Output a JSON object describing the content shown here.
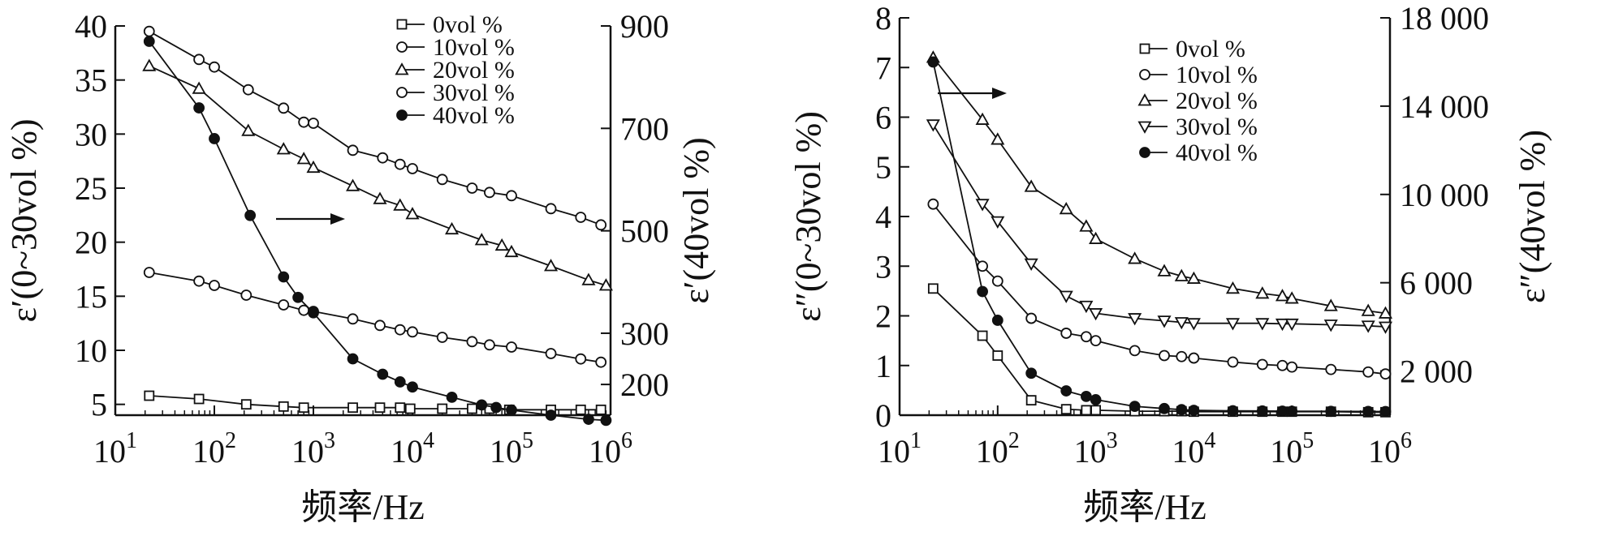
{
  "chart_data": [
    {
      "type": "line",
      "xscale": "log",
      "xlim": [
        10,
        1000000
      ],
      "x_ticks": [
        1,
        2,
        3,
        4,
        5,
        6
      ],
      "x_tick_base": "10",
      "xlabel": "频率/Hz",
      "ylabel": "ε′(0~30vol %)",
      "ylim": [
        4,
        40
      ],
      "y_ticks": [
        "5",
        "10",
        "15",
        "20",
        "25",
        "30",
        "35",
        "40"
      ],
      "y2label": "ε′(40vol %)",
      "y2lim": [
        140,
        900
      ],
      "y2_ticks": [
        "200",
        "300",
        "500",
        "700",
        "900"
      ],
      "legend_position": "top-right",
      "arrow": "right-axis",
      "series": [
        {
          "name": "0vol %",
          "marker": "square",
          "axis": "left",
          "x": [
            22,
            70,
            210,
            500,
            800,
            2500,
            4700,
            7500,
            9500,
            20000,
            40000,
            60000,
            95000,
            250000,
            500000,
            800000
          ],
          "y": [
            5.8,
            5.5,
            5.0,
            4.8,
            4.7,
            4.7,
            4.7,
            4.7,
            4.6,
            4.6,
            4.6,
            4.6,
            4.5,
            4.5,
            4.5,
            4.5
          ]
        },
        {
          "name": "10vol %",
          "marker": "circle",
          "axis": "left",
          "x": [
            22,
            70,
            100,
            210,
            500,
            800,
            1000,
            2500,
            4700,
            7500,
            10000,
            20000,
            40000,
            60000,
            100000,
            250000,
            500000,
            800000
          ],
          "y": [
            17.2,
            16.4,
            16.0,
            15.1,
            14.2,
            13.7,
            13.6,
            12.9,
            12.3,
            11.9,
            11.7,
            11.2,
            10.8,
            10.5,
            10.3,
            9.7,
            9.2,
            8.9
          ]
        },
        {
          "name": "20vol %",
          "marker": "triangle",
          "axis": "left",
          "x": [
            22,
            70,
            220,
            500,
            800,
            1000,
            2500,
            4700,
            7500,
            10000,
            25000,
            50000,
            80000,
            100000,
            250000,
            600000,
            900000
          ],
          "y": [
            36.3,
            34.2,
            30.3,
            28.6,
            27.7,
            26.9,
            25.2,
            24.0,
            23.4,
            22.6,
            21.2,
            20.2,
            19.7,
            19.1,
            17.8,
            16.5,
            16.0
          ]
        },
        {
          "name": "30vol %",
          "marker": "circle",
          "axis": "left",
          "x": [
            22,
            70,
            100,
            220,
            500,
            800,
            1000,
            2500,
            5000,
            7500,
            10000,
            20000,
            40000,
            60000,
            100000,
            250000,
            500000,
            800000
          ],
          "y": [
            39.5,
            36.9,
            36.2,
            34.1,
            32.4,
            31.1,
            31.0,
            28.5,
            27.8,
            27.2,
            26.8,
            25.8,
            25.0,
            24.6,
            24.3,
            23.1,
            22.3,
            21.6
          ]
        },
        {
          "name": "40vol %",
          "marker": "filled-circle",
          "axis": "right",
          "x": [
            22,
            70,
            100,
            230,
            500,
            700,
            1000,
            2500,
            5000,
            7500,
            10000,
            25000,
            50000,
            70000,
            100000,
            250000,
            600000,
            900000
          ],
          "y": [
            870,
            740,
            680,
            530,
            410,
            370,
            340,
            250,
            220,
            205,
            195,
            175,
            160,
            155,
            150,
            140,
            132,
            130
          ]
        }
      ]
    },
    {
      "type": "line",
      "xscale": "log",
      "xlim": [
        10,
        1000000
      ],
      "x_ticks": [
        1,
        2,
        3,
        4,
        5,
        6
      ],
      "x_tick_base": "10",
      "xlabel": "频率/Hz",
      "ylabel": "ε″(0~30vol %)",
      "ylim": [
        0,
        8
      ],
      "y_ticks": [
        "0",
        "1",
        "2",
        "3",
        "4",
        "5",
        "6",
        "7",
        "8"
      ],
      "y2label": "ε″(40vol %)",
      "y2lim": [
        0,
        18000
      ],
      "y2_ticks": [
        "2 000",
        "6 000",
        "10 000",
        "14 000",
        "18 000"
      ],
      "legend_position": "top-right",
      "arrow": "right-axis",
      "series": [
        {
          "name": "0vol %",
          "marker": "square",
          "axis": "left",
          "x": [
            22,
            70,
            100,
            220,
            500,
            800,
            1000,
            2500,
            5000,
            7500,
            10000,
            25000,
            50000,
            80000,
            100000,
            250000,
            600000,
            900000
          ],
          "y": [
            2.55,
            1.6,
            1.2,
            0.3,
            0.12,
            0.1,
            0.1,
            0.08,
            0.08,
            0.08,
            0.07,
            0.07,
            0.07,
            0.07,
            0.07,
            0.07,
            0.06,
            0.06
          ]
        },
        {
          "name": "10vol %",
          "marker": "circle",
          "axis": "left",
          "x": [
            22,
            70,
            100,
            220,
            500,
            800,
            1000,
            2500,
            5000,
            7500,
            10000,
            25000,
            50000,
            80000,
            100000,
            250000,
            600000,
            900000
          ],
          "y": [
            4.25,
            3.0,
            2.7,
            1.95,
            1.65,
            1.58,
            1.5,
            1.3,
            1.2,
            1.18,
            1.15,
            1.07,
            1.02,
            1.0,
            0.97,
            0.92,
            0.87,
            0.83
          ]
        },
        {
          "name": "20vol %",
          "marker": "triangle",
          "axis": "left",
          "x": [
            22,
            70,
            100,
            220,
            500,
            800,
            1000,
            2500,
            5000,
            7500,
            10000,
            25000,
            50000,
            80000,
            100000,
            250000,
            600000,
            900000
          ],
          "y": [
            7.2,
            5.95,
            5.55,
            4.6,
            4.15,
            3.8,
            3.55,
            3.15,
            2.9,
            2.8,
            2.75,
            2.55,
            2.45,
            2.4,
            2.35,
            2.2,
            2.1,
            2.05
          ]
        },
        {
          "name": "30vol %",
          "marker": "triangle-down",
          "axis": "left",
          "x": [
            22,
            70,
            100,
            220,
            500,
            800,
            1000,
            2500,
            5000,
            7500,
            10000,
            25000,
            50000,
            80000,
            100000,
            250000,
            600000,
            900000
          ],
          "y": [
            5.85,
            4.25,
            3.9,
            3.05,
            2.4,
            2.2,
            2.05,
            1.95,
            1.9,
            1.87,
            1.85,
            1.85,
            1.85,
            1.84,
            1.84,
            1.82,
            1.8,
            1.78
          ]
        },
        {
          "name": "40vol %",
          "marker": "filled-circle",
          "axis": "right",
          "x": [
            22,
            70,
            100,
            220,
            500,
            800,
            1000,
            2500,
            5000,
            7500,
            10000,
            25000,
            50000,
            80000,
            100000,
            250000,
            600000,
            900000
          ],
          "y": [
            16000,
            5600,
            4300,
            1900,
            1100,
            850,
            700,
            400,
            300,
            250,
            220,
            200,
            190,
            185,
            180,
            175,
            170,
            165
          ]
        }
      ]
    }
  ]
}
